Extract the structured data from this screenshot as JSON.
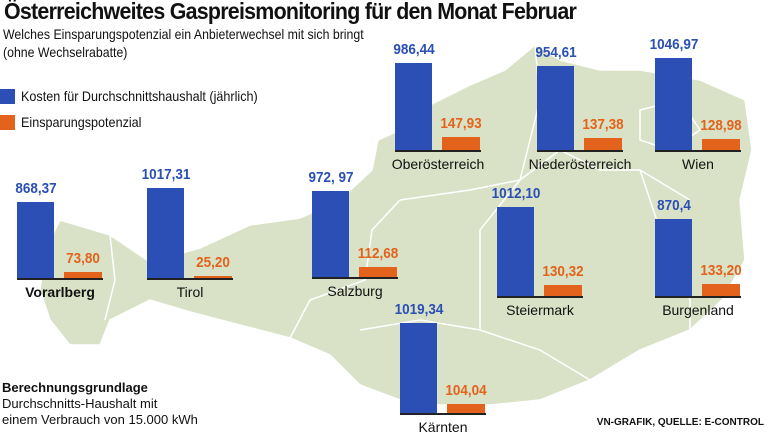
{
  "title": "Österreichweites Gaspreismonitoring für den Monat Februar",
  "subtitle_line1": "Welches Einsparungspotenzial ein Anbieterwechsel mit sich bringt",
  "subtitle_line2": "(ohne Wechselrabatte)",
  "footnote": {
    "heading": "Berechnungsgrundlage",
    "line1": "Durchschnitts-Haushalt mit",
    "line2": "einem Verbrauch von 15.000 kWh"
  },
  "source": "VN-GRAFIK, QUELLE: E-CONTROL",
  "colors": {
    "cost": "#2b4fb5",
    "savings": "#e3621c",
    "map": "#d9e2c6"
  },
  "chart_data": {
    "type": "bar",
    "title": "Österreichweites Gaspreismonitoring für den Monat Februar",
    "categories": [
      "Vorarlberg",
      "Tirol",
      "Salzburg",
      "Oberösterreich",
      "Niederösterreich",
      "Wien",
      "Steiermark",
      "Burgenland",
      "Kärnten"
    ],
    "series": [
      {
        "name": "Kosten für Durchschnittshaushalt (jährlich)",
        "values": [
          868.37,
          1017.31,
          972.97,
          986.44,
          954.61,
          1046.97,
          1012.1,
          870.4,
          1019.34
        ],
        "labels": [
          "868,37",
          "1017,31",
          "972, 97",
          "986,44",
          "954,61",
          "1046,97",
          "1012,10",
          "870,4",
          "1019,34"
        ]
      },
      {
        "name": "Einsparungspotenzial",
        "values": [
          73.8,
          25.2,
          112.68,
          147.93,
          137.38,
          128.98,
          130.32,
          133.2,
          104.04
        ],
        "labels": [
          "73,80",
          "25,20",
          "112,68",
          "147,93",
          "137,38",
          "128,98",
          "130,32",
          "133,20",
          "104,04"
        ]
      }
    ],
    "legend": "top-left",
    "grid": false
  }
}
